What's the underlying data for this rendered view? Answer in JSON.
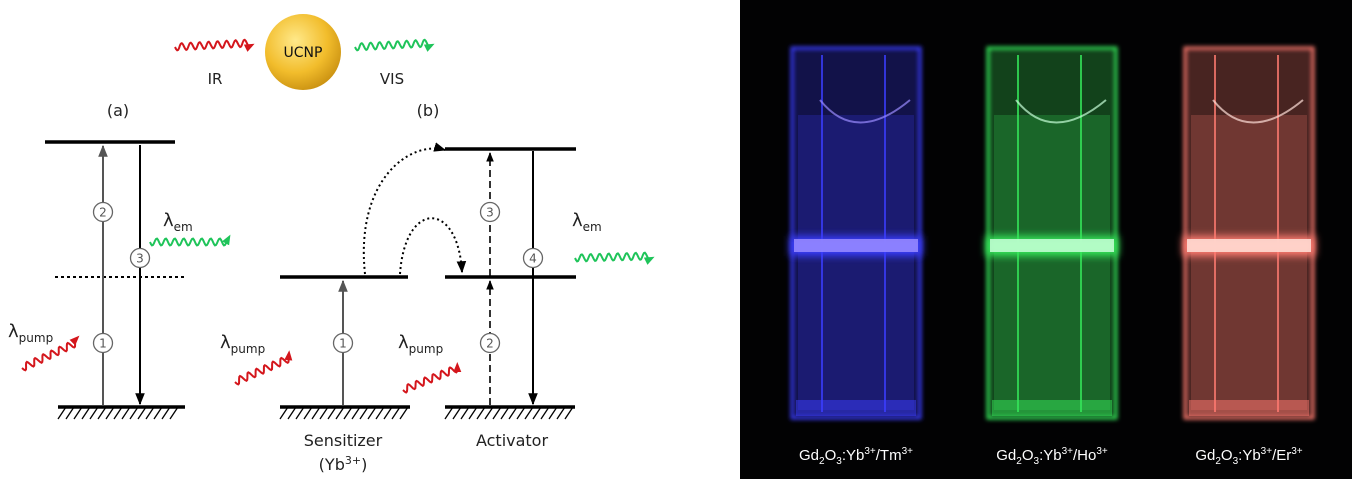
{
  "header": {
    "input": "IR",
    "particle": "UCNP",
    "output": "VIS"
  },
  "panel_a": {
    "label": "(a)",
    "steps": [
      "1",
      "2",
      "3"
    ],
    "emission": {
      "symbol": "λ",
      "sub": "em"
    },
    "pump": {
      "symbol": "λ",
      "sub": "pump"
    }
  },
  "panel_b": {
    "label": "(b)",
    "steps": [
      "1",
      "2",
      "3",
      "4"
    ],
    "emission": {
      "symbol": "λ",
      "sub": "em"
    },
    "pumps": [
      {
        "symbol": "λ",
        "sub": "pump"
      },
      {
        "symbol": "λ",
        "sub": "pump"
      }
    ],
    "sensitizer": {
      "name": "Sensitizer",
      "ion": [
        "(Yb",
        "3+",
        ")"
      ]
    },
    "activator": "Activator"
  },
  "photo": {
    "captions": [
      [
        "Gd",
        "2",
        "O",
        "3",
        ":Yb",
        "3+",
        "/Tm",
        "3+"
      ],
      [
        "Gd",
        "2",
        "O",
        "3",
        ":Yb",
        "3+",
        "/Ho",
        "3+"
      ],
      [
        "Gd",
        "2",
        "O",
        "3",
        ":Yb",
        "3+",
        "/Er",
        "3+"
      ]
    ]
  }
}
